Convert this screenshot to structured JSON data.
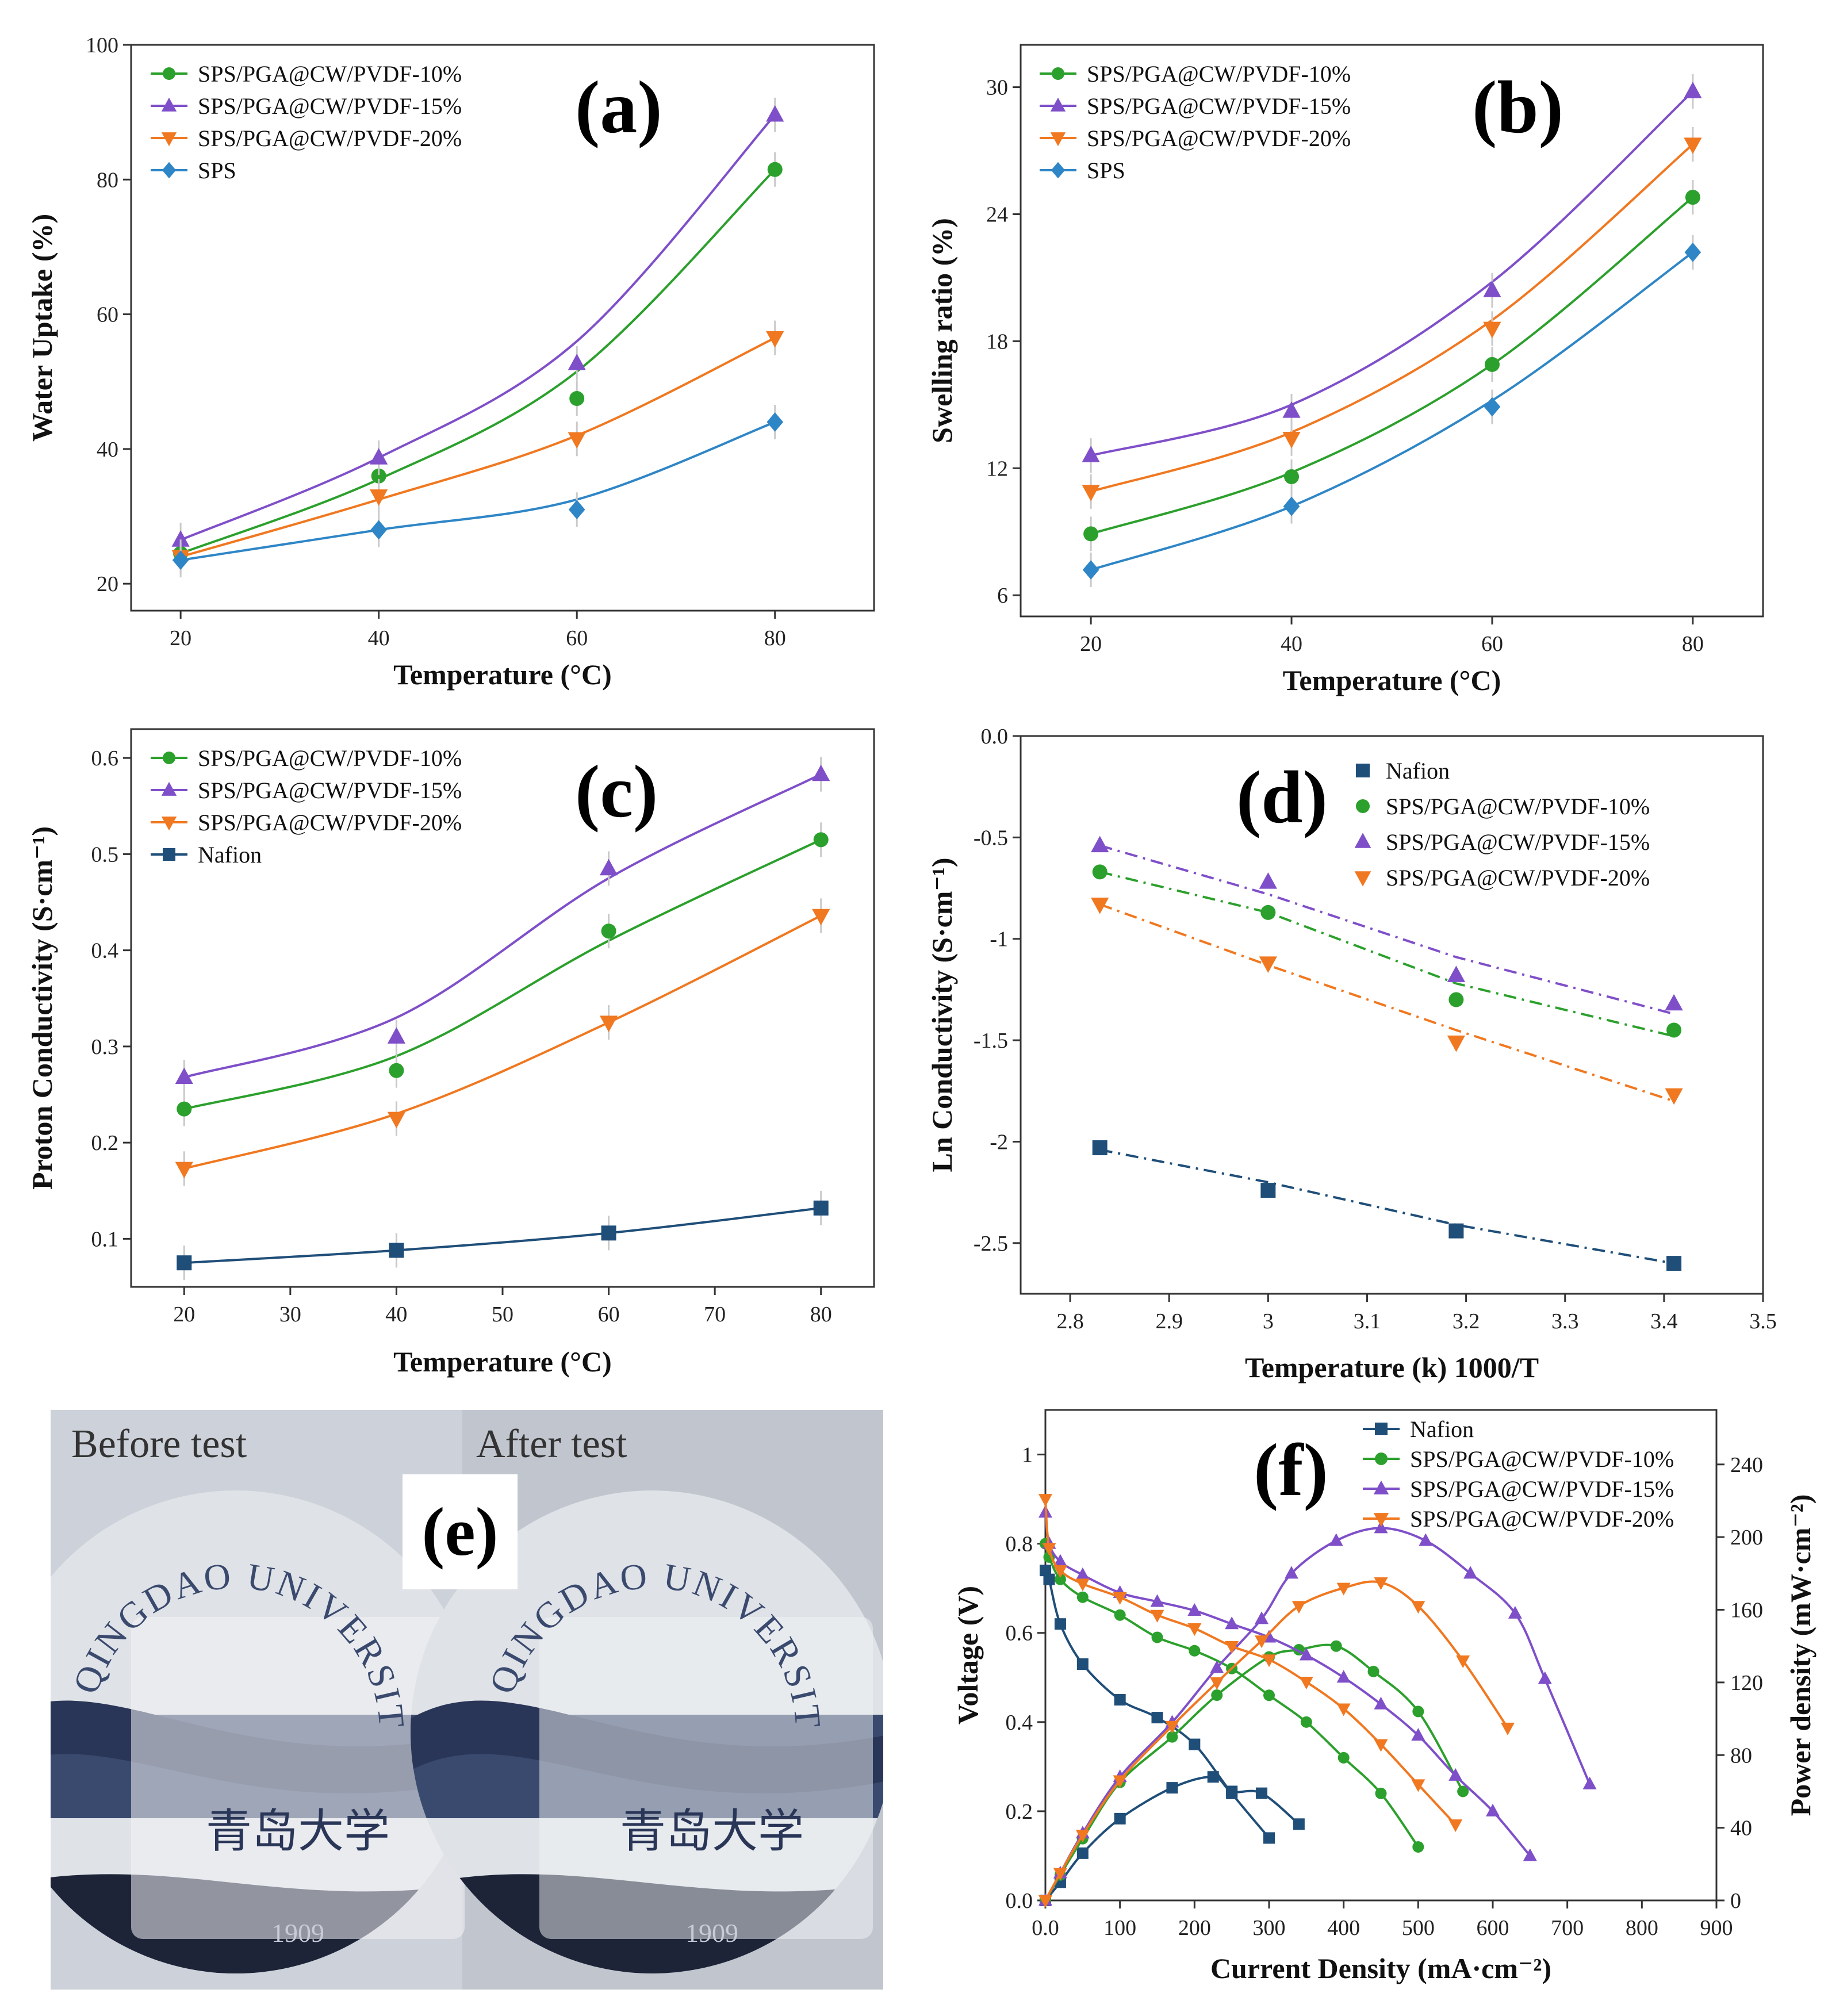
{
  "colors": {
    "green": "#2ca02c",
    "purple": "#7f4fc9",
    "orange": "#f07820",
    "blue": "#2f86c6",
    "navy": "#1f4e79"
  },
  "chart_data": [
    {
      "panel": "(a)",
      "type": "line",
      "xlabel": "Temperature (°C)",
      "ylabel": "Water Uptake (%)",
      "xlim": [
        15,
        90
      ],
      "ylim": [
        16,
        100
      ],
      "xticks": [
        20,
        40,
        60,
        80
      ],
      "yticks": [
        20,
        40,
        60,
        80,
        100
      ],
      "x": [
        20,
        40,
        60,
        80
      ],
      "series": [
        {
          "name": "SPS/PGA@CW/PVDF-10%",
          "marker": "circle",
          "color": "#2ca02c",
          "values": [
            24.5,
            36,
            47.5,
            81.5
          ],
          "fit": [
            24.5,
            35.5,
            51.5,
            81.5
          ]
        },
        {
          "name": "SPS/PGA@CW/PVDF-15%",
          "marker": "triangle-up",
          "color": "#7f4fc9",
          "values": [
            26.5,
            38.7,
            52.7,
            89.6
          ],
          "fit": [
            26.5,
            38.7,
            56,
            89.6
          ]
        },
        {
          "name": "SPS/PGA@CW/PVDF-20%",
          "marker": "triangle-down",
          "color": "#f07820",
          "values": [
            24,
            33,
            41.5,
            56.5
          ],
          "fit": [
            24,
            32.5,
            42,
            56.5
          ]
        },
        {
          "name": "SPS",
          "marker": "diamond",
          "color": "#2f86c6",
          "values": [
            23.5,
            28,
            31,
            44
          ],
          "fit": [
            23.5,
            28,
            32.5,
            44
          ]
        }
      ]
    },
    {
      "panel": "(b)",
      "type": "line",
      "xlabel": "Temperature (°C)",
      "ylabel": "Swelling ratio (%)",
      "xlim": [
        13,
        87
      ],
      "ylim": [
        5,
        32
      ],
      "xticks": [
        20,
        40,
        60,
        80
      ],
      "yticks": [
        6,
        12,
        18,
        24,
        30
      ],
      "x": [
        20,
        40,
        60,
        80
      ],
      "series": [
        {
          "name": "SPS/PGA@CW/PVDF-10%",
          "marker": "circle",
          "color": "#2ca02c",
          "values": [
            8.9,
            11.6,
            16.9,
            24.8
          ],
          "fit": [
            8.9,
            11.8,
            16.9,
            24.8
          ]
        },
        {
          "name": "SPS/PGA@CW/PVDF-15%",
          "marker": "triangle-up",
          "color": "#7f4fc9",
          "values": [
            12.6,
            14.7,
            20.4,
            29.8
          ],
          "fit": [
            12.6,
            15,
            20.8,
            29.8
          ]
        },
        {
          "name": "SPS/PGA@CW/PVDF-20%",
          "marker": "triangle-down",
          "color": "#f07820",
          "values": [
            10.9,
            13.4,
            18.6,
            27.3
          ],
          "fit": [
            10.9,
            13.7,
            19,
            27.3
          ]
        },
        {
          "name": "SPS",
          "marker": "diamond",
          "color": "#2f86c6",
          "values": [
            7.2,
            10.2,
            14.9,
            22.2
          ],
          "fit": [
            7.2,
            10.2,
            15.2,
            22.2
          ]
        }
      ]
    },
    {
      "panel": "(c)",
      "type": "line",
      "xlabel": "Temperature (°C)",
      "ylabel": "Proton Conductivity (S·cm⁻¹)",
      "xlim": [
        15,
        85
      ],
      "ylim": [
        0.05,
        0.63
      ],
      "xticks": [
        20,
        30,
        40,
        50,
        60,
        70,
        80
      ],
      "yticks": [
        0.1,
        0.2,
        0.3,
        0.4,
        0.5,
        0.6
      ],
      "x": [
        20,
        40,
        60,
        80
      ],
      "series": [
        {
          "name": "SPS/PGA@CW/PVDF-10%",
          "marker": "circle",
          "color": "#2ca02c",
          "values": [
            0.235,
            0.275,
            0.42,
            0.515
          ],
          "fit": [
            0.235,
            0.29,
            0.41,
            0.515
          ]
        },
        {
          "name": "SPS/PGA@CW/PVDF-15%",
          "marker": "triangle-up",
          "color": "#7f4fc9",
          "values": [
            0.268,
            0.31,
            0.485,
            0.583
          ],
          "fit": [
            0.268,
            0.33,
            0.475,
            0.583
          ]
        },
        {
          "name": "SPS/PGA@CW/PVDF-20%",
          "marker": "triangle-down",
          "color": "#f07820",
          "values": [
            0.173,
            0.225,
            0.325,
            0.436
          ],
          "fit": [
            0.173,
            0.23,
            0.325,
            0.436
          ]
        },
        {
          "name": "Nafion",
          "marker": "square",
          "color": "#1f4e79",
          "values": [
            0.075,
            0.088,
            0.106,
            0.132
          ],
          "fit": [
            0.075,
            0.088,
            0.106,
            0.132
          ]
        }
      ]
    },
    {
      "panel": "(d)",
      "type": "scatter",
      "xlabel": "Temperature (k) 1000/T",
      "ylabel": "Ln Conductivity (S·cm⁻¹)",
      "xlim": [
        2.75,
        3.5
      ],
      "ylim": [
        -2.75,
        0
      ],
      "xticks": [
        2.8,
        2.9,
        3.0,
        3.1,
        3.2,
        3.3,
        3.4,
        3.5
      ],
      "yticks": [
        0.0,
        -0.5,
        -1.0,
        -1.5,
        -2.0,
        -2.5
      ],
      "x": [
        2.83,
        3.0,
        3.19,
        3.41
      ],
      "series": [
        {
          "name": "Nafion",
          "marker": "square",
          "color": "#1f4e79",
          "values": [
            -2.03,
            -2.24,
            -2.44,
            -2.6
          ],
          "fit": [
            -2.04,
            -2.2,
            -2.41,
            -2.6
          ]
        },
        {
          "name": "SPS/PGA@CW/PVDF-10%",
          "marker": "circle",
          "color": "#2ca02c",
          "values": [
            -0.67,
            -0.87,
            -1.3,
            -1.45
          ],
          "fit": [
            -0.67,
            -0.87,
            -1.22,
            -1.48
          ]
        },
        {
          "name": "SPS/PGA@CW/PVDF-15%",
          "marker": "triangle-up",
          "color": "#7f4fc9",
          "values": [
            -0.54,
            -0.72,
            -1.18,
            -1.32
          ],
          "fit": [
            -0.54,
            -0.78,
            -1.09,
            -1.37
          ]
        },
        {
          "name": "SPS/PGA@CW/PVDF-20%",
          "marker": "triangle-down",
          "color": "#f07820",
          "values": [
            -0.83,
            -1.12,
            -1.51,
            -1.77
          ],
          "fit": [
            -0.83,
            -1.13,
            -1.45,
            -1.8
          ]
        }
      ]
    },
    {
      "panel": "(f)",
      "type": "line",
      "xlabel": "Current Density (mA·cm⁻²)",
      "ylabel": "Voltage (V)",
      "y2label": "Power density (mW·cm⁻²)",
      "xlim": [
        0,
        900
      ],
      "ylim": [
        0,
        1.1
      ],
      "y2lim": [
        0,
        270
      ],
      "xticks": [
        0,
        100,
        200,
        300,
        400,
        500,
        600,
        700,
        800,
        900
      ],
      "yticks": [
        0.0,
        0.2,
        0.4,
        0.6,
        0.8,
        1.0
      ],
      "y2ticks": [
        0,
        40,
        80,
        120,
        160,
        200,
        240
      ],
      "series": [
        {
          "name": "Nafion",
          "marker": "square",
          "color": "#1f4e79",
          "voltage": {
            "x": [
              0,
              5,
              20,
              50,
              100,
              150,
              200,
              250,
              300
            ],
            "y": [
              0.74,
              0.72,
              0.62,
              0.53,
              0.45,
              0.41,
              0.35,
              0.24,
              0.14
            ]
          },
          "power": {
            "x": [
              0,
              20,
              50,
              100,
              170,
              225,
              250,
              290,
              340
            ],
            "y": [
              0,
              10,
              26,
              45,
              62,
              68,
              60,
              59,
              42
            ]
          }
        },
        {
          "name": "SPS/PGA@CW/PVDF-10%",
          "marker": "circle",
          "color": "#2ca02c",
          "voltage": {
            "x": [
              0,
              5,
              20,
              50,
              100,
              150,
              200,
              250,
              300,
              350,
              400,
              450,
              500
            ],
            "y": [
              0.8,
              0.77,
              0.72,
              0.68,
              0.64,
              0.59,
              0.56,
              0.52,
              0.46,
              0.4,
              0.32,
              0.24,
              0.12
            ]
          },
          "power": {
            "x": [
              0,
              20,
              50,
              100,
              170,
              230,
              300,
              340,
              390,
              440,
              500,
              560
            ],
            "y": [
              0,
              14,
              34,
              65,
              90,
              113,
              134,
              138,
              140,
              126,
              104,
              60
            ]
          }
        },
        {
          "name": "SPS/PGA@CW/PVDF-15%",
          "marker": "triangle-up",
          "color": "#7f4fc9",
          "voltage": {
            "x": [
              0,
              5,
              20,
              50,
              100,
              150,
              200,
              250,
              300,
              350,
              400,
              450,
              500,
              550,
              600,
              650
            ],
            "y": [
              0.87,
              0.8,
              0.76,
              0.73,
              0.69,
              0.67,
              0.65,
              0.62,
              0.59,
              0.55,
              0.5,
              0.44,
              0.37,
              0.28,
              0.2,
              0.1
            ]
          },
          "power": {
            "x": [
              0,
              20,
              50,
              100,
              170,
              230,
              290,
              330,
              390,
              450,
              510,
              570,
              630,
              670,
              730
            ],
            "y": [
              0,
              15,
              37,
              68,
              98,
              128,
              155,
              180,
              198,
              205,
              198,
              180,
              158,
              122,
              64
            ]
          }
        },
        {
          "name": "SPS/PGA@CW/PVDF-20%",
          "marker": "triangle-down",
          "color": "#f07820",
          "voltage": {
            "x": [
              0,
              5,
              20,
              50,
              100,
              150,
              200,
              250,
              300,
              350,
              400,
              450,
              500,
              550
            ],
            "y": [
              0.9,
              0.79,
              0.74,
              0.71,
              0.68,
              0.64,
              0.61,
              0.57,
              0.54,
              0.49,
              0.43,
              0.35,
              0.26,
              0.17
            ]
          },
          "power": {
            "x": [
              0,
              20,
              50,
              100,
              170,
              230,
              290,
              340,
              400,
              450,
              500,
              560,
              620
            ],
            "y": [
              0,
              15,
              36,
              66,
              96,
              120,
              143,
              162,
              172,
              175,
              162,
              132,
              95
            ]
          }
        }
      ]
    }
  ],
  "photo": {
    "panel": "(e)",
    "left_caption": "Before test",
    "right_caption": "After test",
    "seal_text": "QINGDAO UNIVERSITY",
    "seal_chinese": "青岛大学",
    "seal_year": "1909"
  }
}
